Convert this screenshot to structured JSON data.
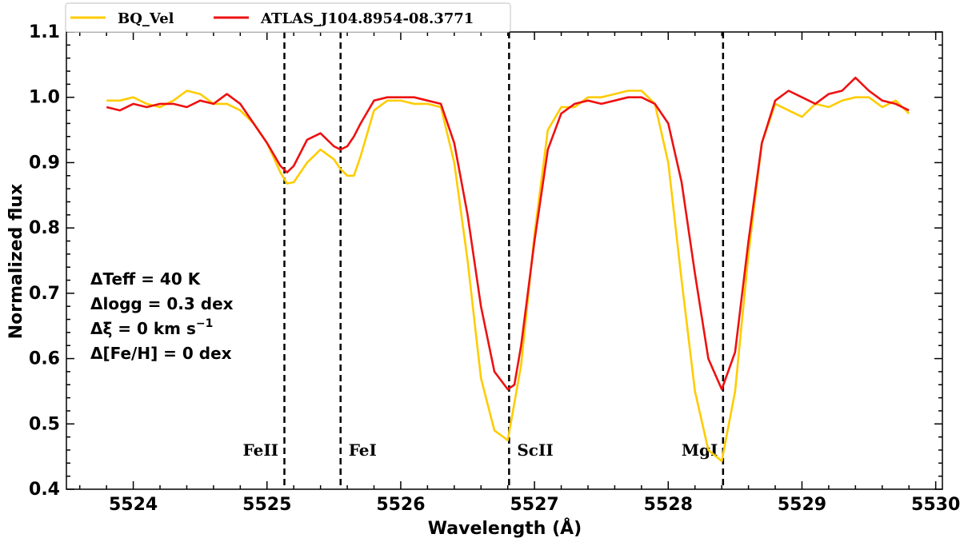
{
  "chart_data": {
    "type": "line",
    "xlabel": "Wavelength (Å)",
    "ylabel": "Normalized flux",
    "xlim": [
      5523.5,
      5530.05
    ],
    "ylim": [
      0.4,
      1.1
    ],
    "xticks": [
      5524,
      5525,
      5526,
      5527,
      5528,
      5529,
      5530
    ],
    "xtick_labels": [
      "5524",
      "5525",
      "5526",
      "5527",
      "5528",
      "5529",
      "5530"
    ],
    "yticks": [
      0.4,
      0.5,
      0.6,
      0.7,
      0.8,
      0.9,
      1.0,
      1.1
    ],
    "ytick_labels": [
      "0.4",
      "0.5",
      "0.6",
      "0.7",
      "0.8",
      "0.9",
      "1.0",
      "1.1"
    ],
    "legend_position": "top-left",
    "grid": false,
    "series": [
      {
        "name": "BQ_Vel",
        "color": "#FFCC00",
        "x": [
          5523.8,
          5523.9,
          5524.0,
          5524.1,
          5524.2,
          5524.3,
          5524.4,
          5524.5,
          5524.6,
          5524.7,
          5524.8,
          5524.9,
          5525.0,
          5525.1,
          5525.15,
          5525.2,
          5525.3,
          5525.4,
          5525.5,
          5525.55,
          5525.6,
          5525.65,
          5525.7,
          5525.8,
          5525.9,
          5526.0,
          5526.1,
          5526.2,
          5526.3,
          5526.4,
          5526.5,
          5526.6,
          5526.7,
          5526.8,
          5526.9,
          5527.0,
          5527.1,
          5527.2,
          5527.3,
          5527.4,
          5527.5,
          5527.6,
          5527.7,
          5527.8,
          5527.9,
          5528.0,
          5528.1,
          5528.2,
          5528.3,
          5528.4,
          5528.5,
          5528.6,
          5528.7,
          5528.8,
          5528.9,
          5529.0,
          5529.1,
          5529.2,
          5529.3,
          5529.4,
          5529.5,
          5529.6,
          5529.7,
          5529.8
        ],
        "y": [
          0.995,
          0.995,
          1.0,
          0.99,
          0.985,
          0.995,
          1.01,
          1.005,
          0.99,
          0.99,
          0.98,
          0.96,
          0.93,
          0.885,
          0.868,
          0.87,
          0.9,
          0.92,
          0.905,
          0.89,
          0.88,
          0.88,
          0.91,
          0.98,
          0.995,
          0.995,
          0.99,
          0.99,
          0.985,
          0.9,
          0.75,
          0.57,
          0.49,
          0.475,
          0.59,
          0.79,
          0.95,
          0.985,
          0.985,
          1.0,
          1.0,
          1.005,
          1.01,
          1.01,
          0.99,
          0.9,
          0.72,
          0.55,
          0.46,
          0.443,
          0.55,
          0.76,
          0.93,
          0.99,
          0.98,
          0.97,
          0.99,
          0.985,
          0.995,
          1.0,
          1.0,
          0.985,
          0.995,
          0.975
        ]
      },
      {
        "name": "ATLAS_J104.8954-08.3771",
        "color": "#EE1111",
        "x": [
          5523.8,
          5523.9,
          5524.0,
          5524.1,
          5524.2,
          5524.3,
          5524.4,
          5524.5,
          5524.6,
          5524.7,
          5524.8,
          5524.9,
          5525.0,
          5525.1,
          5525.15,
          5525.2,
          5525.3,
          5525.4,
          5525.5,
          5525.55,
          5525.6,
          5525.65,
          5525.7,
          5525.8,
          5525.9,
          5526.0,
          5526.1,
          5526.2,
          5526.3,
          5526.4,
          5526.5,
          5526.6,
          5526.7,
          5526.8,
          5526.85,
          5526.9,
          5527.0,
          5527.1,
          5527.2,
          5527.3,
          5527.4,
          5527.5,
          5527.6,
          5527.7,
          5527.8,
          5527.9,
          5528.0,
          5528.1,
          5528.2,
          5528.3,
          5528.4,
          5528.5,
          5528.6,
          5528.7,
          5528.8,
          5528.9,
          5529.0,
          5529.1,
          5529.2,
          5529.3,
          5529.4,
          5529.5,
          5529.6,
          5529.7,
          5529.8
        ],
        "y": [
          0.985,
          0.98,
          0.99,
          0.985,
          0.99,
          0.99,
          0.985,
          0.995,
          0.99,
          1.005,
          0.99,
          0.96,
          0.93,
          0.895,
          0.885,
          0.895,
          0.935,
          0.945,
          0.925,
          0.92,
          0.925,
          0.94,
          0.96,
          0.995,
          1.0,
          1.0,
          1.0,
          0.995,
          0.99,
          0.93,
          0.82,
          0.68,
          0.58,
          0.553,
          0.56,
          0.62,
          0.78,
          0.92,
          0.975,
          0.99,
          0.995,
          0.99,
          0.995,
          1.0,
          1.0,
          0.99,
          0.96,
          0.87,
          0.73,
          0.6,
          0.553,
          0.61,
          0.78,
          0.93,
          0.995,
          1.01,
          1.0,
          0.99,
          1.005,
          1.01,
          1.03,
          1.01,
          0.995,
          0.99,
          0.98
        ]
      }
    ],
    "line_markers": [
      {
        "x": 5525.13,
        "label": "FeII",
        "label_side": "left"
      },
      {
        "x": 5525.55,
        "label": "FeI",
        "label_side": "right"
      },
      {
        "x": 5526.81,
        "label": "ScII",
        "label_side": "right"
      },
      {
        "x": 5528.41,
        "label": "MgI",
        "label_side": "left"
      }
    ],
    "marker_label_y": 0.46,
    "annotations": [
      "ΔTeff = 40 K",
      "Δlogg = 0.3 dex",
      "Δξ = 0 km s",
      "Δ[Fe/H] = 0 dex"
    ],
    "annotation_superscript": "−1"
  }
}
